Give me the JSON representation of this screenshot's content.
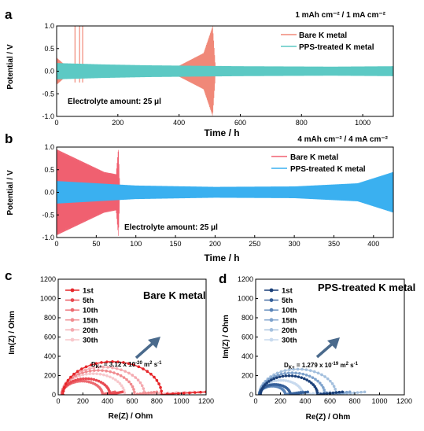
{
  "chart_data": [
    {
      "panel": "a",
      "type": "line",
      "condition": "1 mAh cm⁻² / 1 mA cm⁻²",
      "xlabel": "Time / h",
      "ylabel": "Potential / V",
      "xlim": [
        0,
        1100
      ],
      "ylim": [
        -1.0,
        1.0
      ],
      "xticks": [
        0,
        200,
        400,
        600,
        800,
        1000
      ],
      "yticks": [
        -1.0,
        -0.5,
        0.0,
        0.5,
        1.0
      ],
      "annotation": "Electrolyte amount: 25 μl",
      "legend_position": "top-right",
      "series": [
        {
          "name": "Bare K metal",
          "color": "#f08878",
          "amplitude_profile": [
            [
              0,
              0.3
            ],
            [
              30,
              0.12
            ],
            [
              60,
              0.1
            ],
            [
              400,
              0.12
            ],
            [
              480,
              0.4
            ],
            [
              510,
              1.0
            ],
            [
              520,
              0
            ]
          ],
          "spikes": [
            [
              60,
              1.0
            ],
            [
              75,
              1.0
            ],
            [
              85,
              1.0
            ]
          ],
          "end_time": 520
        },
        {
          "name": "PPS-treated K metal",
          "color": "#5cc9c4",
          "amplitude_profile": [
            [
              0,
              0.18
            ],
            [
              150,
              0.15
            ],
            [
              300,
              0.13
            ],
            [
              600,
              0.11
            ],
            [
              900,
              0.1
            ],
            [
              1100,
              0.11
            ]
          ],
          "end_time": 1100
        }
      ]
    },
    {
      "panel": "b",
      "type": "line",
      "condition": "4 mAh cm⁻² / 4 mA cm⁻²",
      "xlabel": "Time / h",
      "ylabel": "Potential / V",
      "xlim": [
        0,
        425
      ],
      "ylim": [
        -1.0,
        1.0
      ],
      "xticks": [
        0,
        50,
        100,
        150,
        200,
        250,
        300,
        350,
        400
      ],
      "yticks": [
        -1.0,
        -0.5,
        0.0,
        0.5,
        1.0
      ],
      "annotation": "Electrolyte amount: 25 μl",
      "legend_position": "top-right",
      "series": [
        {
          "name": "Bare K metal",
          "color": "#f06070",
          "amplitude_profile": [
            [
              0,
              0.95
            ],
            [
              30,
              0.7
            ],
            [
              60,
              0.45
            ],
            [
              75,
              0.4
            ],
            [
              78,
              1.0
            ],
            [
              80,
              0
            ]
          ],
          "end_time": 80
        },
        {
          "name": "PPS-treated K metal",
          "color": "#3ab0f0",
          "amplitude_profile": [
            [
              0,
              0.25
            ],
            [
              100,
              0.15
            ],
            [
              200,
              0.12
            ],
            [
              300,
              0.13
            ],
            [
              380,
              0.2
            ],
            [
              425,
              0.45
            ]
          ],
          "end_time": 425
        }
      ]
    },
    {
      "panel": "c",
      "type": "line",
      "title": "Bare K metal",
      "xlabel": "Re(Z) / Ohm",
      "ylabel": "Im(Z) / Ohm",
      "xlim": [
        0,
        1200
      ],
      "ylim": [
        0,
        1200
      ],
      "xticks": [
        0,
        200,
        400,
        600,
        800,
        1000,
        1200
      ],
      "yticks": [
        0,
        200,
        400,
        600,
        800,
        1000,
        1200
      ],
      "annotation": "D = 3.12 x 10-20 m² s-1",
      "annotation_parts": {
        "d": "D",
        "sub": "K+",
        "pre": " = 3.12 x 10",
        "exp1": "-20",
        "mid": " m",
        "exp2": "2",
        "mid2": " s",
        "exp3": "-1"
      },
      "legend_position": "top-left",
      "series": [
        {
          "name": "1st",
          "color": "#e6262a",
          "arc_start": 40,
          "arc_end": 840,
          "tail_end": 1200
        },
        {
          "name": "5th",
          "color": "#e84850",
          "arc_start": 30,
          "arc_end": 420,
          "tail_end": 520
        },
        {
          "name": "10th",
          "color": "#ec6a70",
          "arc_start": 30,
          "arc_end": 360,
          "tail_end": 460
        },
        {
          "name": "15th",
          "color": "#f08c90",
          "arc_start": 30,
          "arc_end": 620,
          "tail_end": 800
        },
        {
          "name": "20th",
          "color": "#f4aab0",
          "arc_start": 30,
          "arc_end": 700,
          "tail_end": 1200
        },
        {
          "name": "30th",
          "color": "#f8c8cc",
          "arc_start": 30,
          "arc_end": 540,
          "tail_end": 1100
        }
      ]
    },
    {
      "panel": "d",
      "type": "line",
      "title": "PPS-treated K metal",
      "xlabel": "Re(Z) / Ohm",
      "ylabel": "Im(Z) / Ohm",
      "xlim": [
        0,
        1200
      ],
      "ylim": [
        0,
        1200
      ],
      "xticks": [
        0,
        200,
        400,
        600,
        800,
        1000,
        1200
      ],
      "yticks": [
        0,
        200,
        400,
        600,
        800,
        1000,
        1200
      ],
      "annotation": "D = 1.279 x 10-19 m² s-1",
      "annotation_parts": {
        "d": "D",
        "sub": "K+",
        "pre": " = 1.279 x 10",
        "exp1": "-19",
        "mid": " m",
        "exp2": "2",
        "mid2": " s",
        "exp3": "-1"
      },
      "legend_position": "top-left",
      "series": [
        {
          "name": "1st",
          "color": "#1a3f78",
          "arc_start": 40,
          "arc_end": 500,
          "tail_end": 700
        },
        {
          "name": "5th",
          "color": "#36609a",
          "arc_start": 30,
          "arc_end": 280,
          "tail_end": 420
        },
        {
          "name": "10th",
          "color": "#5a84b8",
          "arc_start": 30,
          "arc_end": 240,
          "tail_end": 380
        },
        {
          "name": "15th",
          "color": "#7ea2cc",
          "arc_start": 30,
          "arc_end": 560,
          "tail_end": 760
        },
        {
          "name": "20th",
          "color": "#a4c0de",
          "arc_start": 30,
          "arc_end": 650,
          "tail_end": 880
        },
        {
          "name": "30th",
          "color": "#c8daee",
          "arc_start": 30,
          "arc_end": 380,
          "tail_end": 600
        }
      ]
    }
  ],
  "panel_letters": [
    "a",
    "b",
    "c",
    "d"
  ],
  "arrow_color": "#4a6a8c",
  "title_colors": {
    "c": "#f08888",
    "d": "#1f6fb8"
  }
}
